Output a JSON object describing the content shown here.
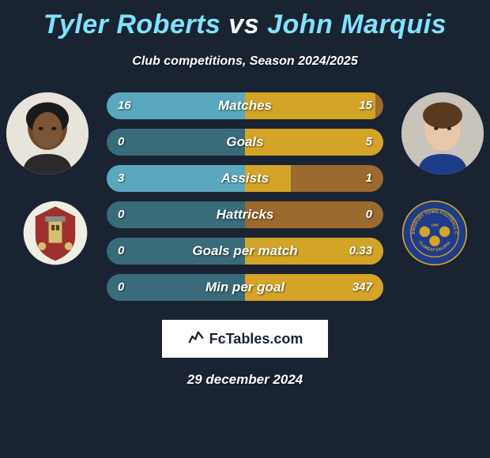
{
  "title": {
    "player1": "Tyler Roberts",
    "vs": "vs",
    "player2": "John Marquis"
  },
  "subtitle": "Club competitions, Season 2024/2025",
  "colors": {
    "background": "#1a2332",
    "title_accent": "#7ee3ff",
    "bar_left_inactive": "#3a6b7a",
    "bar_left_active": "#5aa8bd",
    "bar_right_inactive": "#9a6a2e",
    "bar_right_active": "#d4a428",
    "text": "#ffffff"
  },
  "stats": [
    {
      "label": "Matches",
      "left_value": "16",
      "right_value": "15",
      "left_pct": 100,
      "right_pct": 94
    },
    {
      "label": "Goals",
      "left_value": "0",
      "right_value": "5",
      "left_pct": 0,
      "right_pct": 100
    },
    {
      "label": "Assists",
      "left_value": "3",
      "right_value": "1",
      "left_pct": 100,
      "right_pct": 33
    },
    {
      "label": "Hattricks",
      "left_value": "0",
      "right_value": "0",
      "left_pct": 0,
      "right_pct": 0
    },
    {
      "label": "Goals per match",
      "left_value": "0",
      "right_value": "0.33",
      "left_pct": 0,
      "right_pct": 100
    },
    {
      "label": "Min per goal",
      "left_value": "0",
      "right_value": "347",
      "left_pct": 0,
      "right_pct": 100
    }
  ],
  "footer": {
    "brand": "FcTables.com",
    "date": "29 december 2024"
  },
  "crest_left": {
    "bg": "#a03030",
    "accent": "#d4c070"
  },
  "crest_right": {
    "bg": "#1e3c8a",
    "accent": "#d4a428",
    "text_top": "SHREWSBURY TOWN",
    "text_bottom": "FLOREAT SALOPIA"
  }
}
